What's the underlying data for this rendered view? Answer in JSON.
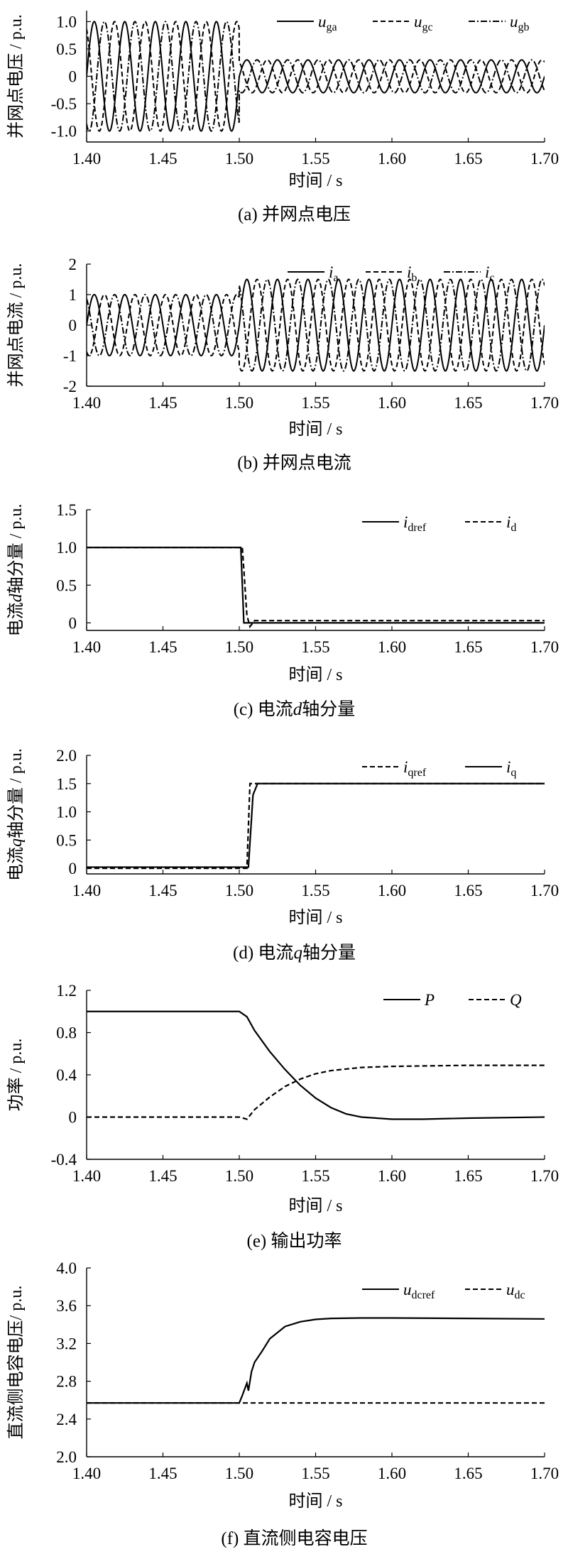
{
  "chart_data": [
    {
      "type": "line",
      "caption": "(a)  并网点电压",
      "ylabel": "并网点电压 / p.u.",
      "xlabel": "时间 / s",
      "xlim": [
        1.4,
        1.7
      ],
      "ylim": [
        -1.2,
        1.2
      ],
      "xticks": [
        "1.40",
        "1.45",
        "1.50",
        "1.55",
        "1.60",
        "1.65",
        "1.70"
      ],
      "yticks": [
        "1.0",
        "0.5",
        "0",
        "-0.5",
        "-1.0"
      ],
      "legend_position": "top-right",
      "series": [
        {
          "name": "u",
          "sub": "ga",
          "style": "solid",
          "waveform": "sine",
          "freq_hz": 50,
          "phase_deg": 0,
          "amplitude_before": 1.0,
          "amplitude_after": 0.3,
          "change_at": 1.5
        },
        {
          "name": "u",
          "sub": "gc",
          "style": "dashed",
          "waveform": "sine",
          "freq_hz": 50,
          "phase_deg": 120,
          "amplitude_before": 1.0,
          "amplitude_after": 0.3,
          "change_at": 1.5
        },
        {
          "name": "u",
          "sub": "gb",
          "style": "dashdot",
          "waveform": "sine",
          "freq_hz": 50,
          "phase_deg": -120,
          "amplitude_before": 1.0,
          "amplitude_after": 0.3,
          "change_at": 1.5
        }
      ]
    },
    {
      "type": "line",
      "caption": "(b)  并网点电流",
      "ylabel": "并网点电流 / p.u.",
      "xlabel": "时间 / s",
      "xlim": [
        1.4,
        1.7
      ],
      "ylim": [
        -2,
        2
      ],
      "xticks": [
        "1.40",
        "1.45",
        "1.50",
        "1.55",
        "1.60",
        "1.65",
        "1.70"
      ],
      "yticks": [
        "2",
        "1",
        "0",
        "-1",
        "-2"
      ],
      "legend_position": "top-right",
      "series": [
        {
          "name": "i",
          "sub": "a",
          "style": "solid",
          "waveform": "sine",
          "freq_hz": 50,
          "phase_deg": 0,
          "amplitude_before": 1.0,
          "amplitude_after": 1.5,
          "change_at": 1.5
        },
        {
          "name": "i",
          "sub": "b",
          "style": "dashed",
          "waveform": "sine",
          "freq_hz": 50,
          "phase_deg": -120,
          "amplitude_before": 1.0,
          "amplitude_after": 1.5,
          "change_at": 1.5
        },
        {
          "name": "i",
          "sub": "c",
          "style": "dashdot",
          "waveform": "sine",
          "freq_hz": 50,
          "phase_deg": 120,
          "amplitude_before": 1.0,
          "amplitude_after": 1.5,
          "change_at": 1.5
        }
      ]
    },
    {
      "type": "line",
      "caption_parts": [
        "(c)  电流",
        "d",
        "轴分量"
      ],
      "ylabel_parts": [
        "电流",
        "d",
        "轴分量 / p.u."
      ],
      "xlabel": "时间 / s",
      "xlim": [
        1.4,
        1.7
      ],
      "ylim": [
        -0.1,
        1.5
      ],
      "xticks": [
        "1.40",
        "1.45",
        "1.50",
        "1.55",
        "1.60",
        "1.65",
        "1.70"
      ],
      "yticks": [
        "1.5",
        "1.0",
        "0.5",
        "0"
      ],
      "legend_position": "top-right",
      "series": [
        {
          "name": "i",
          "sub": "dref",
          "style": "solid",
          "x": [
            1.4,
            1.501,
            1.503,
            1.7
          ],
          "y": [
            1.0,
            1.0,
            0.0,
            0.0
          ]
        },
        {
          "name": "i",
          "sub": "d",
          "style": "dashed",
          "x": [
            1.4,
            1.502,
            1.505,
            1.507,
            1.51,
            1.7
          ],
          "y": [
            1.0,
            1.0,
            0.1,
            -0.05,
            0.03,
            0.03
          ]
        }
      ]
    },
    {
      "type": "line",
      "caption_parts": [
        "(d)  电流",
        "q",
        "轴分量"
      ],
      "ylabel_parts": [
        "电流",
        "q",
        "轴分量 / p.u."
      ],
      "xlabel": "时间 / s",
      "xlim": [
        1.4,
        1.7
      ],
      "ylim": [
        -0.1,
        2.0
      ],
      "xticks": [
        "1.40",
        "1.45",
        "1.50",
        "1.55",
        "1.60",
        "1.65",
        "1.70"
      ],
      "yticks": [
        "2.0",
        "1.5",
        "1.0",
        "0.5",
        "0"
      ],
      "legend_position": "top-right",
      "series": [
        {
          "name": "i",
          "sub": "qref",
          "style": "dashed",
          "x": [
            1.4,
            1.505,
            1.507,
            1.7
          ],
          "y": [
            0.0,
            0.0,
            1.5,
            1.5
          ]
        },
        {
          "name": "i",
          "sub": "q",
          "style": "solid",
          "x": [
            1.4,
            1.506,
            1.509,
            1.512,
            1.7
          ],
          "y": [
            0.02,
            0.02,
            1.3,
            1.5,
            1.5
          ]
        }
      ]
    },
    {
      "type": "line",
      "caption": "(e)  输出功率",
      "ylabel": "功率 / p.u.",
      "xlabel": "时间 / s",
      "xlim": [
        1.4,
        1.7
      ],
      "ylim": [
        -0.4,
        1.2
      ],
      "xticks": [
        "1.40",
        "1.45",
        "1.50",
        "1.55",
        "1.60",
        "1.65",
        "1.70"
      ],
      "yticks": [
        "1.2",
        "0.8",
        "0.4",
        "0",
        "-0.4"
      ],
      "legend_position": "top-right",
      "series": [
        {
          "name": "P",
          "sub": "",
          "style": "solid",
          "x": [
            1.4,
            1.5,
            1.505,
            1.51,
            1.52,
            1.53,
            1.54,
            1.55,
            1.56,
            1.57,
            1.58,
            1.6,
            1.62,
            1.65,
            1.7
          ],
          "y": [
            1.0,
            1.0,
            0.95,
            0.82,
            0.62,
            0.45,
            0.3,
            0.18,
            0.09,
            0.03,
            0.0,
            -0.02,
            -0.02,
            -0.01,
            0.0
          ]
        },
        {
          "name": "Q",
          "sub": "",
          "style": "dashed",
          "x": [
            1.4,
            1.5,
            1.505,
            1.51,
            1.52,
            1.53,
            1.54,
            1.55,
            1.56,
            1.58,
            1.6,
            1.65,
            1.7
          ],
          "y": [
            0.0,
            0.0,
            -0.02,
            0.07,
            0.19,
            0.29,
            0.36,
            0.41,
            0.44,
            0.47,
            0.48,
            0.49,
            0.49
          ]
        }
      ]
    },
    {
      "type": "line",
      "caption": "(f)  直流侧电容电压",
      "ylabel": "直流侧电容电压/ p.u.",
      "xlabel": "时间 / s",
      "xlim": [
        1.4,
        1.7
      ],
      "ylim": [
        2.0,
        4.0
      ],
      "xticks": [
        "1.40",
        "1.45",
        "1.50",
        "1.55",
        "1.60",
        "1.65",
        "1.70"
      ],
      "yticks": [
        "4.0",
        "3.6",
        "3.2",
        "2.8",
        "2.4",
        "2.0"
      ],
      "legend_position": "top-right",
      "series": [
        {
          "name": "u",
          "sub": "dcref",
          "style": "solid",
          "x": [
            1.4,
            1.5,
            1.502,
            1.505,
            1.506,
            1.508,
            1.51,
            1.515,
            1.52,
            1.53,
            1.54,
            1.55,
            1.56,
            1.58,
            1.6,
            1.65,
            1.7
          ],
          "y": [
            2.57,
            2.57,
            2.65,
            2.78,
            2.7,
            2.9,
            3.0,
            3.12,
            3.25,
            3.38,
            3.43,
            3.455,
            3.465,
            3.47,
            3.47,
            3.465,
            3.46
          ]
        },
        {
          "name": "u",
          "sub": "dc",
          "style": "dashed",
          "x": [
            1.4,
            1.7
          ],
          "y": [
            2.57,
            2.57
          ]
        }
      ]
    }
  ]
}
